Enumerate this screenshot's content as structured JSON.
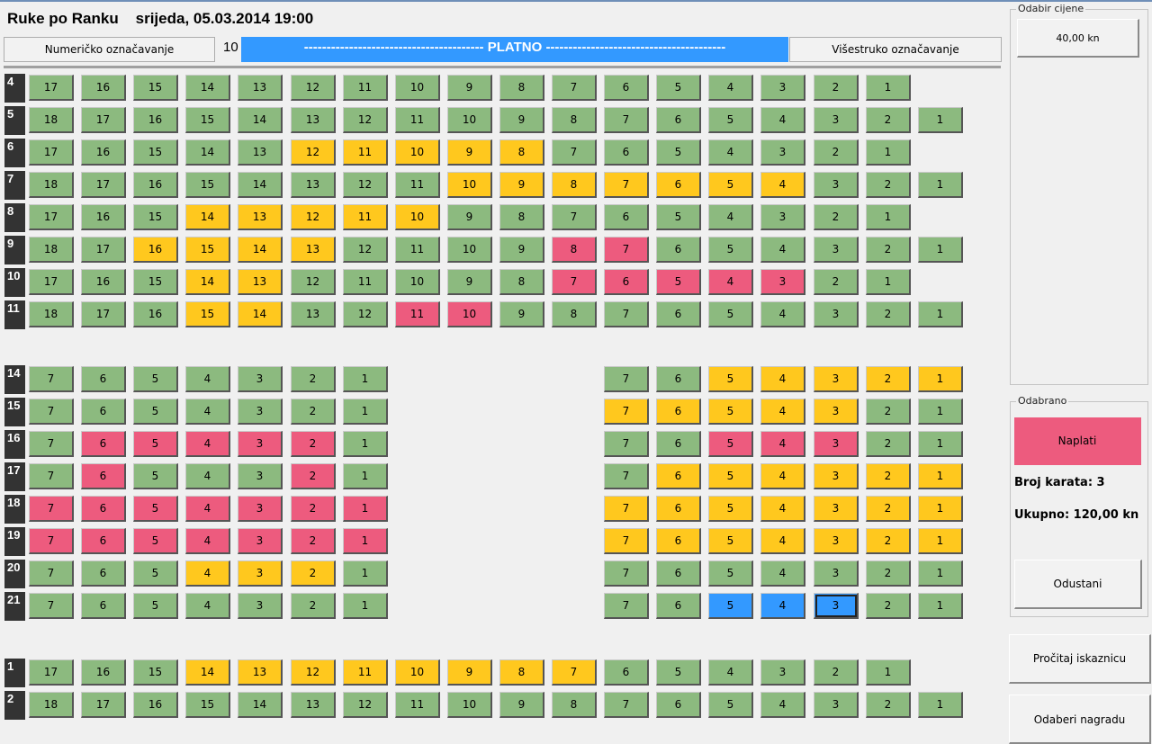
{
  "header": {
    "title": "Ruke po Ranku    srijeda, 05.03.2014 19:00",
    "numeric_button": "Numeričko označavanje",
    "multi_button": "Višestruko označavanje",
    "screen_number": "10",
    "screen_label": "---------------------------------------- PLATNO ----------------------------------------"
  },
  "price_panel": {
    "label": "Odabir cijene",
    "price": "40,00 kn"
  },
  "selected_panel": {
    "label": "Odabrano",
    "pay_button": "Naplati",
    "tickets": "Broj karata: 3",
    "total": "Ukupno: 120,00 kn",
    "cancel_button": "Odustani"
  },
  "buttons": {
    "read_card": "Pročitaj iskaznicu",
    "choose_reward": "Odaberi nagradu"
  },
  "legend_colors": {
    "free": "#8cba7f",
    "reserved": "#ffc81e",
    "sold": "#ed5b7e",
    "selected": "#3399ff"
  },
  "rows": [
    {
      "label": "4",
      "seats": [
        [
          "17",
          "g"
        ],
        [
          "16",
          "g"
        ],
        [
          "15",
          "g"
        ],
        [
          "14",
          "g"
        ],
        [
          "13",
          "g"
        ],
        [
          "12",
          "g"
        ],
        [
          "11",
          "g"
        ],
        [
          "10",
          "g"
        ],
        [
          "9",
          "g"
        ],
        [
          "8",
          "g"
        ],
        [
          "7",
          "g"
        ],
        [
          "6",
          "g"
        ],
        [
          "5",
          "g"
        ],
        [
          "4",
          "g"
        ],
        [
          "3",
          "g"
        ],
        [
          "2",
          "g"
        ],
        [
          "1",
          "g"
        ]
      ]
    },
    {
      "label": "5",
      "seats": [
        [
          "18",
          "g"
        ],
        [
          "17",
          "g"
        ],
        [
          "16",
          "g"
        ],
        [
          "15",
          "g"
        ],
        [
          "14",
          "g"
        ],
        [
          "13",
          "g"
        ],
        [
          "12",
          "g"
        ],
        [
          "11",
          "g"
        ],
        [
          "10",
          "g"
        ],
        [
          "9",
          "g"
        ],
        [
          "8",
          "g"
        ],
        [
          "7",
          "g"
        ],
        [
          "6",
          "g"
        ],
        [
          "5",
          "g"
        ],
        [
          "4",
          "g"
        ],
        [
          "3",
          "g"
        ],
        [
          "2",
          "g"
        ],
        [
          "1",
          "g"
        ]
      ]
    },
    {
      "label": "6",
      "seats": [
        [
          "17",
          "g"
        ],
        [
          "16",
          "g"
        ],
        [
          "15",
          "g"
        ],
        [
          "14",
          "g"
        ],
        [
          "13",
          "g"
        ],
        [
          "12",
          "y"
        ],
        [
          "11",
          "y"
        ],
        [
          "10",
          "y"
        ],
        [
          "9",
          "y"
        ],
        [
          "8",
          "y"
        ],
        [
          "7",
          "g"
        ],
        [
          "6",
          "g"
        ],
        [
          "5",
          "g"
        ],
        [
          "4",
          "g"
        ],
        [
          "3",
          "g"
        ],
        [
          "2",
          "g"
        ],
        [
          "1",
          "g"
        ]
      ]
    },
    {
      "label": "7",
      "seats": [
        [
          "18",
          "g"
        ],
        [
          "17",
          "g"
        ],
        [
          "16",
          "g"
        ],
        [
          "15",
          "g"
        ],
        [
          "14",
          "g"
        ],
        [
          "13",
          "g"
        ],
        [
          "12",
          "g"
        ],
        [
          "11",
          "g"
        ],
        [
          "10",
          "y"
        ],
        [
          "9",
          "y"
        ],
        [
          "8",
          "y"
        ],
        [
          "7",
          "y"
        ],
        [
          "6",
          "y"
        ],
        [
          "5",
          "y"
        ],
        [
          "4",
          "y"
        ],
        [
          "3",
          "g"
        ],
        [
          "2",
          "g"
        ],
        [
          "1",
          "g"
        ]
      ]
    },
    {
      "label": "8",
      "seats": [
        [
          "17",
          "g"
        ],
        [
          "16",
          "g"
        ],
        [
          "15",
          "g"
        ],
        [
          "14",
          "y"
        ],
        [
          "13",
          "y"
        ],
        [
          "12",
          "y"
        ],
        [
          "11",
          "y"
        ],
        [
          "10",
          "y"
        ],
        [
          "9",
          "g"
        ],
        [
          "8",
          "g"
        ],
        [
          "7",
          "g"
        ],
        [
          "6",
          "g"
        ],
        [
          "5",
          "g"
        ],
        [
          "4",
          "g"
        ],
        [
          "3",
          "g"
        ],
        [
          "2",
          "g"
        ],
        [
          "1",
          "g"
        ]
      ]
    },
    {
      "label": "9",
      "seats": [
        [
          "18",
          "g"
        ],
        [
          "17",
          "g"
        ],
        [
          "16",
          "y"
        ],
        [
          "15",
          "y"
        ],
        [
          "14",
          "y"
        ],
        [
          "13",
          "y"
        ],
        [
          "12",
          "g"
        ],
        [
          "11",
          "g"
        ],
        [
          "10",
          "g"
        ],
        [
          "9",
          "g"
        ],
        [
          "8",
          "p"
        ],
        [
          "7",
          "p"
        ],
        [
          "6",
          "g"
        ],
        [
          "5",
          "g"
        ],
        [
          "4",
          "g"
        ],
        [
          "3",
          "g"
        ],
        [
          "2",
          "g"
        ],
        [
          "1",
          "g"
        ]
      ]
    },
    {
      "label": "10",
      "seats": [
        [
          "17",
          "g"
        ],
        [
          "16",
          "g"
        ],
        [
          "15",
          "g"
        ],
        [
          "14",
          "y"
        ],
        [
          "13",
          "y"
        ],
        [
          "12",
          "g"
        ],
        [
          "11",
          "g"
        ],
        [
          "10",
          "g"
        ],
        [
          "9",
          "g"
        ],
        [
          "8",
          "g"
        ],
        [
          "7",
          "p"
        ],
        [
          "6",
          "p"
        ],
        [
          "5",
          "p"
        ],
        [
          "4",
          "p"
        ],
        [
          "3",
          "p"
        ],
        [
          "2",
          "g"
        ],
        [
          "1",
          "g"
        ]
      ]
    },
    {
      "label": "11",
      "seats": [
        [
          "18",
          "g"
        ],
        [
          "17",
          "g"
        ],
        [
          "16",
          "g"
        ],
        [
          "15",
          "y"
        ],
        [
          "14",
          "y"
        ],
        [
          "13",
          "g"
        ],
        [
          "12",
          "g"
        ],
        [
          "11",
          "p"
        ],
        [
          "10",
          "p"
        ],
        [
          "9",
          "g"
        ],
        [
          "8",
          "g"
        ],
        [
          "7",
          "g"
        ],
        [
          "6",
          "g"
        ],
        [
          "5",
          "g"
        ],
        [
          "4",
          "g"
        ],
        [
          "3",
          "g"
        ],
        [
          "2",
          "g"
        ],
        [
          "1",
          "g"
        ]
      ]
    },
    {
      "label": "14",
      "seats": [
        [
          "7",
          "g"
        ],
        [
          "6",
          "g"
        ],
        [
          "5",
          "g"
        ],
        [
          "4",
          "g"
        ],
        [
          "3",
          "g"
        ],
        [
          "2",
          "g"
        ],
        [
          "1",
          "g"
        ],
        [
          "",
          ""
        ],
        [
          "",
          ""
        ],
        [
          "",
          ""
        ],
        [
          "",
          ""
        ],
        [
          "7",
          "g"
        ],
        [
          "6",
          "g"
        ],
        [
          "5",
          "y"
        ],
        [
          "4",
          "y"
        ],
        [
          "3",
          "y"
        ],
        [
          "2",
          "y"
        ],
        [
          "1",
          "y"
        ]
      ]
    },
    {
      "label": "15",
      "seats": [
        [
          "7",
          "g"
        ],
        [
          "6",
          "g"
        ],
        [
          "5",
          "g"
        ],
        [
          "4",
          "g"
        ],
        [
          "3",
          "g"
        ],
        [
          "2",
          "g"
        ],
        [
          "1",
          "g"
        ],
        [
          "",
          ""
        ],
        [
          "",
          ""
        ],
        [
          "",
          ""
        ],
        [
          "",
          ""
        ],
        [
          "7",
          "y"
        ],
        [
          "6",
          "y"
        ],
        [
          "5",
          "y"
        ],
        [
          "4",
          "y"
        ],
        [
          "3",
          "y"
        ],
        [
          "2",
          "g"
        ],
        [
          "1",
          "g"
        ]
      ]
    },
    {
      "label": "16",
      "seats": [
        [
          "7",
          "g"
        ],
        [
          "6",
          "p"
        ],
        [
          "5",
          "p"
        ],
        [
          "4",
          "p"
        ],
        [
          "3",
          "p"
        ],
        [
          "2",
          "p"
        ],
        [
          "1",
          "g"
        ],
        [
          "",
          ""
        ],
        [
          "",
          ""
        ],
        [
          "",
          ""
        ],
        [
          "",
          ""
        ],
        [
          "7",
          "g"
        ],
        [
          "6",
          "g"
        ],
        [
          "5",
          "p"
        ],
        [
          "4",
          "p"
        ],
        [
          "3",
          "p"
        ],
        [
          "2",
          "g"
        ],
        [
          "1",
          "g"
        ]
      ]
    },
    {
      "label": "17",
      "seats": [
        [
          "7",
          "g"
        ],
        [
          "6",
          "p"
        ],
        [
          "5",
          "g"
        ],
        [
          "4",
          "g"
        ],
        [
          "3",
          "g"
        ],
        [
          "2",
          "p"
        ],
        [
          "1",
          "g"
        ],
        [
          "",
          ""
        ],
        [
          "",
          ""
        ],
        [
          "",
          ""
        ],
        [
          "",
          ""
        ],
        [
          "7",
          "g"
        ],
        [
          "6",
          "y"
        ],
        [
          "5",
          "y"
        ],
        [
          "4",
          "y"
        ],
        [
          "3",
          "y"
        ],
        [
          "2",
          "y"
        ],
        [
          "1",
          "y"
        ]
      ]
    },
    {
      "label": "18",
      "seats": [
        [
          "7",
          "p"
        ],
        [
          "6",
          "p"
        ],
        [
          "5",
          "p"
        ],
        [
          "4",
          "p"
        ],
        [
          "3",
          "p"
        ],
        [
          "2",
          "p"
        ],
        [
          "1",
          "p"
        ],
        [
          "",
          ""
        ],
        [
          "",
          ""
        ],
        [
          "",
          ""
        ],
        [
          "",
          ""
        ],
        [
          "7",
          "y"
        ],
        [
          "6",
          "y"
        ],
        [
          "5",
          "y"
        ],
        [
          "4",
          "y"
        ],
        [
          "3",
          "y"
        ],
        [
          "2",
          "y"
        ],
        [
          "1",
          "y"
        ]
      ]
    },
    {
      "label": "19",
      "seats": [
        [
          "7",
          "p"
        ],
        [
          "6",
          "p"
        ],
        [
          "5",
          "p"
        ],
        [
          "4",
          "p"
        ],
        [
          "3",
          "p"
        ],
        [
          "2",
          "p"
        ],
        [
          "1",
          "p"
        ],
        [
          "",
          ""
        ],
        [
          "",
          ""
        ],
        [
          "",
          ""
        ],
        [
          "",
          ""
        ],
        [
          "7",
          "y"
        ],
        [
          "6",
          "y"
        ],
        [
          "5",
          "y"
        ],
        [
          "4",
          "y"
        ],
        [
          "3",
          "y"
        ],
        [
          "2",
          "y"
        ],
        [
          "1",
          "y"
        ]
      ]
    },
    {
      "label": "20",
      "seats": [
        [
          "7",
          "g"
        ],
        [
          "6",
          "g"
        ],
        [
          "5",
          "g"
        ],
        [
          "4",
          "y"
        ],
        [
          "3",
          "y"
        ],
        [
          "2",
          "y"
        ],
        [
          "1",
          "g"
        ],
        [
          "",
          ""
        ],
        [
          "",
          ""
        ],
        [
          "",
          ""
        ],
        [
          "",
          ""
        ],
        [
          "7",
          "g"
        ],
        [
          "6",
          "g"
        ],
        [
          "5",
          "g"
        ],
        [
          "4",
          "g"
        ],
        [
          "3",
          "g"
        ],
        [
          "2",
          "g"
        ],
        [
          "1",
          "g"
        ]
      ]
    },
    {
      "label": "21",
      "seats": [
        [
          "7",
          "g"
        ],
        [
          "6",
          "g"
        ],
        [
          "5",
          "g"
        ],
        [
          "4",
          "g"
        ],
        [
          "3",
          "g"
        ],
        [
          "2",
          "g"
        ],
        [
          "1",
          "g"
        ],
        [
          "",
          ""
        ],
        [
          "",
          ""
        ],
        [
          "",
          ""
        ],
        [
          "",
          ""
        ],
        [
          "7",
          "g"
        ],
        [
          "6",
          "g"
        ],
        [
          "5",
          "b"
        ],
        [
          "4",
          "b"
        ],
        [
          "3",
          "b*"
        ],
        [
          "2",
          "g"
        ],
        [
          "1",
          "g"
        ]
      ]
    },
    {
      "label": "1",
      "seats": [
        [
          "17",
          "g"
        ],
        [
          "16",
          "g"
        ],
        [
          "15",
          "g"
        ],
        [
          "14",
          "y"
        ],
        [
          "13",
          "y"
        ],
        [
          "12",
          "y"
        ],
        [
          "11",
          "y"
        ],
        [
          "10",
          "y"
        ],
        [
          "9",
          "y"
        ],
        [
          "8",
          "y"
        ],
        [
          "7",
          "y"
        ],
        [
          "6",
          "g"
        ],
        [
          "5",
          "g"
        ],
        [
          "4",
          "g"
        ],
        [
          "3",
          "g"
        ],
        [
          "2",
          "g"
        ],
        [
          "1",
          "g"
        ]
      ]
    },
    {
      "label": "2",
      "seats": [
        [
          "18",
          "g"
        ],
        [
          "17",
          "g"
        ],
        [
          "16",
          "g"
        ],
        [
          "15",
          "g"
        ],
        [
          "14",
          "g"
        ],
        [
          "13",
          "g"
        ],
        [
          "12",
          "g"
        ],
        [
          "11",
          "g"
        ],
        [
          "10",
          "g"
        ],
        [
          "9",
          "g"
        ],
        [
          "8",
          "g"
        ],
        [
          "7",
          "g"
        ],
        [
          "6",
          "g"
        ],
        [
          "5",
          "g"
        ],
        [
          "4",
          "g"
        ],
        [
          "3",
          "g"
        ],
        [
          "2",
          "g"
        ],
        [
          "1",
          "g"
        ]
      ]
    }
  ]
}
